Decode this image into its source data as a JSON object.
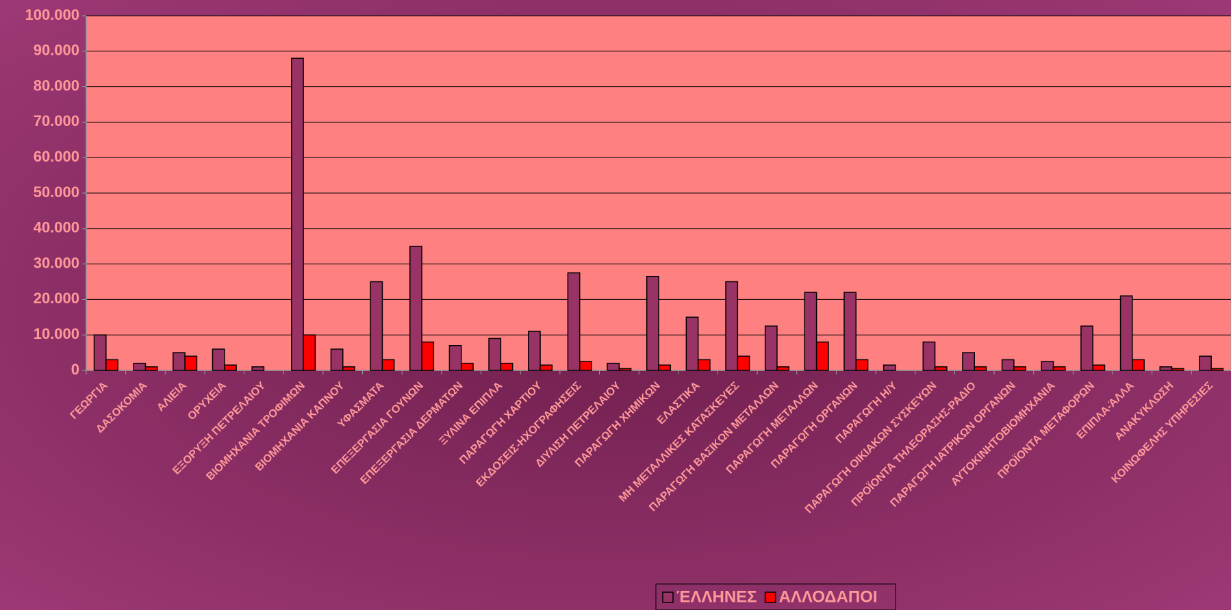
{
  "chart_data": {
    "type": "bar",
    "categories": [
      "ΓΕΩΡΓΙΑ",
      "ΔΑΣΟΚΟΜΙΑ",
      "ΑΛΙΕΙΑ",
      "ΟΡΥΧΕΙΑ",
      "ΕΞΟΡΥΞΗ ΠΕΤΡΕΛΑΙΟΥ",
      "ΒΙΟΜΗΧΑΝΙΑ ΤΡΟΦΙΜΩΝ",
      "ΒΙΟΜΗΧΑΝΙΑ ΚΑΠΝΟΥ",
      "ΥΦΑΣΜΑΤΑ",
      "ΕΠΕΞΕΡΓΑΣΙΑ ΓΟΥΝΩΝ",
      "ΕΠΕΞΕΡΓΑΣΙΑ ΔΕΡΜΑΤΩΝ",
      "ΞΥΛΙΝΑ ΕΠΙΠΛΑ",
      "ΠΑΡΑΓΩΓΗ ΧΑΡΤΙΟΥ",
      "ΕΚΔΟΣΕΙΣ-ΗΧΟΓΡΑΦΗΣΕΙΣ",
      "ΔΙΥΛΙΣΗ ΠΕΤΡΕΛΑΙΟΥ",
      "ΠΑΡΑΓΩΓΗ ΧΗΜΙΚΩΝ",
      "ΕΛΑΣΤΙΚΑ",
      "ΜΗ ΜΕΤΑΛΛΙΚΕΣ ΚΑΤΑΣΚΕΥΕΣ",
      "ΠΑΡΑΓΩΓΗ ΒΑΣΙΚΩΝ ΜΕΤΑΛΛΩΝ",
      "ΠΑΡΑΓΩΓΗ ΜΕΤΑΛΛΩΝ",
      "ΠΑΡΑΓΩΓΗ ΟΡΓΑΝΩΝ",
      "ΠΑΡΑΓΩΓΗ Η/Υ",
      "ΠΑΡΑΓΩΓΗ ΟΙΚΙΑΚΩΝ ΣΥΣΚΕΥΩΝ",
      "ΠΡΟΪΟΝΤΑ ΤΗΛΕΟΡΑΣΗΣ-ΡΑΔΙΟ",
      "ΠΑΡΑΓΩΓΗ ΙΑΤΡΙΚΩΝ ΟΡΓΑΝΩΝ",
      "ΑΥΤΟΚΙΝΗΤΟΒΙΟΜΗΧΑΝΙΑ",
      "ΠΡΟΪΟΝΤΑ ΜΕΤΑΦΟΡΩΝ",
      "ΕΠΙΠΛΑ-ΆΛΛΑ",
      "ΑΝΑΚΥΚΛΩΣΗ",
      "ΚΟΙΝΩΦΕΛΗΣ ΥΠΗΡΕΣΙΕΣ"
    ],
    "series": [
      {
        "name": "ΈΛΛΗΝΕΣ",
        "color": "#993366",
        "values": [
          10000,
          2000,
          5000,
          6000,
          1000,
          88000,
          6000,
          25000,
          35000,
          7000,
          9000,
          11000,
          27500,
          2000,
          26500,
          15000,
          25000,
          12500,
          22000,
          22000,
          1500,
          8000,
          5000,
          3000,
          2500,
          12500,
          21000,
          1000,
          4000
        ]
      },
      {
        "name": "ΑΛΛΟΔΑΠΟΙ",
        "color": "#ff0000",
        "values": [
          3000,
          1000,
          4000,
          1500,
          0,
          10000,
          1000,
          3000,
          8000,
          2000,
          2000,
          1500,
          2500,
          500,
          1500,
          3000,
          4000,
          1000,
          8000,
          3000,
          0,
          1000,
          1000,
          1000,
          1000,
          1500,
          3000,
          500,
          500
        ]
      }
    ],
    "ylim": [
      0,
      100000
    ],
    "yticks": [
      0,
      {
        "value": 10000,
        "label": "10.000"
      },
      {
        "value": 20000,
        "label": "20.000"
      },
      {
        "value": 30000,
        "label": "30.000"
      },
      {
        "value": 40000,
        "label": "40.000"
      },
      {
        "value": 50000,
        "label": "50.000"
      },
      {
        "value": 60000,
        "label": "60.000"
      },
      {
        "value": 70000,
        "label": "70.000"
      },
      {
        "value": 80000,
        "label": "80.000"
      },
      {
        "value": 90000,
        "label": "90.000"
      },
      {
        "value": 100000,
        "label": "100.000"
      }
    ],
    "grid": true,
    "legend": "bottom"
  }
}
